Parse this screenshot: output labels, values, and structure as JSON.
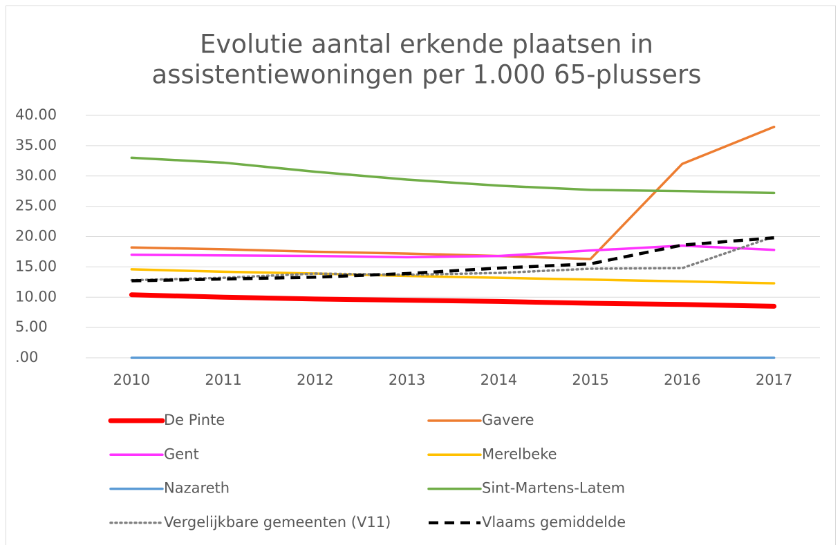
{
  "chart_data": {
    "type": "line",
    "title": [
      "Evolutie aantal erkende plaatsen in",
      "assistentiewoningen per 1.000 65-plussers"
    ],
    "categories": [
      "2010",
      "2011",
      "2012",
      "2013",
      "2014",
      "2015",
      "2016",
      "2017"
    ],
    "ylim": [
      0,
      40
    ],
    "yticks": [
      {
        "value": 0,
        "label": ".00"
      },
      {
        "value": 5,
        "label": "5.00"
      },
      {
        "value": 10,
        "label": "10.00"
      },
      {
        "value": 15,
        "label": "15.00"
      },
      {
        "value": 20,
        "label": "20.00"
      },
      {
        "value": 25,
        "label": "25.00"
      },
      {
        "value": 30,
        "label": "30.00"
      },
      {
        "value": 35,
        "label": "35.00"
      },
      {
        "value": 40,
        "label": "40.00"
      }
    ],
    "grid": true,
    "legend": "bottom",
    "series": [
      {
        "name": "De Pinte",
        "color": "#ff0000",
        "linewidth": 7,
        "linestyle": "solid",
        "values": [
          10.4,
          10.0,
          9.7,
          9.5,
          9.3,
          9.0,
          8.8,
          8.5
        ]
      },
      {
        "name": "Gavere",
        "color": "#ed7d31",
        "linewidth": 3.5,
        "linestyle": "solid",
        "values": [
          18.2,
          17.9,
          17.5,
          17.2,
          16.8,
          16.3,
          32.0,
          38.1
        ]
      },
      {
        "name": "Gent",
        "color": "#ff33ff",
        "linewidth": 3.5,
        "linestyle": "solid",
        "values": [
          17.0,
          16.9,
          16.8,
          16.6,
          16.8,
          17.7,
          18.5,
          17.8
        ]
      },
      {
        "name": "Merelbeke",
        "color": "#ffc000",
        "linewidth": 3.5,
        "linestyle": "solid",
        "values": [
          14.6,
          14.2,
          13.9,
          13.5,
          13.2,
          12.9,
          12.6,
          12.3
        ]
      },
      {
        "name": "Nazareth",
        "color": "#5b9bd5",
        "linewidth": 3.5,
        "linestyle": "solid",
        "values": [
          0,
          0,
          0,
          0,
          0,
          0,
          0,
          0
        ]
      },
      {
        "name": "Sint-Martens-Latem",
        "color": "#70ad47",
        "linewidth": 3.5,
        "linestyle": "solid",
        "values": [
          33.0,
          32.2,
          30.7,
          29.4,
          28.4,
          27.7,
          27.5,
          27.2
        ]
      },
      {
        "name": "Vergelijkbare gemeenten (V11)",
        "color": "#808080",
        "linewidth": 3.5,
        "linestyle": "dotted",
        "values": [
          12.8,
          13.2,
          13.9,
          13.7,
          14.0,
          14.7,
          14.8,
          20.0
        ]
      },
      {
        "name": "Vlaams gemiddelde",
        "color": "#000000",
        "linewidth": 4.5,
        "linestyle": "dashed",
        "values": [
          12.7,
          13.0,
          13.3,
          13.9,
          14.8,
          15.5,
          18.6,
          19.8
        ]
      }
    ]
  }
}
